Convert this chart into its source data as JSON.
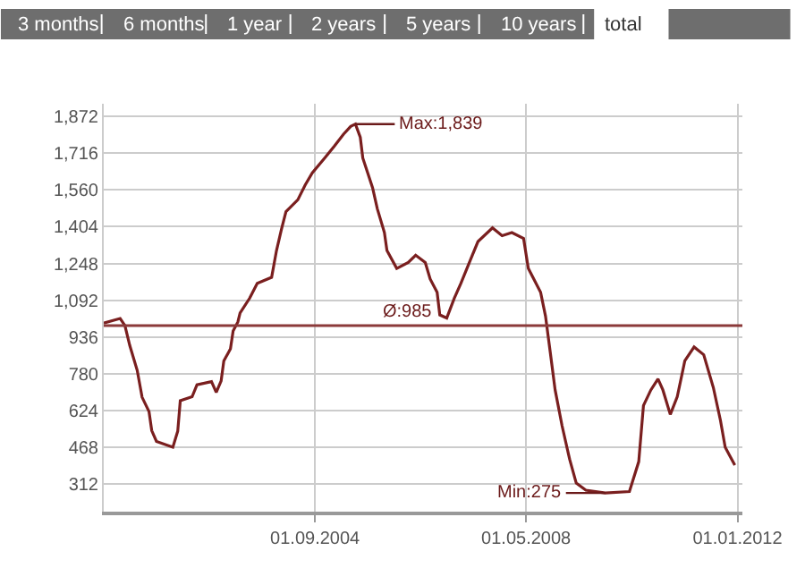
{
  "chart_data": {
    "type": "line",
    "annotations": [
      "3 months",
      "6 months",
      "1 year",
      "2 years",
      "5 years",
      "10 years",
      "total",
      {
        "text": "Max:1,839",
        "x": "2005-05-15",
        "y": 1839
      },
      {
        "text": "Min:275",
        "x": "2009-09-15",
        "y": 275
      }
    ],
    "x": [
      "2001-01-01",
      "2001-04-15",
      "2001-05-15",
      "2001-06-15",
      "2001-08-01",
      "2001-09-01",
      "2001-10-15",
      "2001-11-01",
      "2001-12-01",
      "2002-03-15",
      "2002-04-15",
      "2002-05-01",
      "2002-07-15",
      "2002-08-15",
      "2002-11-15",
      "2002-12-15",
      "2003-01-15",
      "2003-02-01",
      "2003-03-15",
      "2003-04-01",
      "2003-05-01",
      "2003-05-15",
      "2003-07-15",
      "2003-09-01",
      "2003-12-01",
      "2004-01-01",
      "2004-02-01",
      "2004-03-01",
      "2004-05-15",
      "2004-07-01",
      "2004-08-15",
      "2004-11-01",
      "2005-01-01",
      "2005-03-01",
      "2005-04-15",
      "2005-05-15",
      "2005-06-15",
      "2005-07-01",
      "2005-08-01",
      "2005-09-01",
      "2005-10-01",
      "2005-11-15",
      "2005-12-01",
      "2006-02-01",
      "2006-04-15",
      "2006-06-01",
      "2006-08-01",
      "2006-09-01",
      "2006-10-15",
      "2006-11-01",
      "2006-12-15",
      "2007-02-01",
      "2007-03-15",
      "2007-05-15",
      "2007-07-01",
      "2007-10-01",
      "2007-12-01",
      "2008-02-01",
      "2008-04-15",
      "2008-05-15",
      "2008-08-01",
      "2008-09-01",
      "2008-10-01",
      "2008-11-01",
      "2008-12-15",
      "2009-02-01",
      "2009-03-15",
      "2009-05-15",
      "2009-09-15",
      "2010-02-15",
      "2010-04-15",
      "2010-05-15",
      "2010-07-01",
      "2010-08-15",
      "2010-09-15",
      "2010-11-01",
      "2010-12-15",
      "2011-02-01",
      "2011-04-01",
      "2011-06-01",
      "2011-08-01",
      "2011-09-15",
      "2011-10-15",
      "2011-12-15"
    ],
    "series": [
      {
        "color": "#7a1f1f",
        "values": [
          995,
          1015,
          985,
          900,
          795,
          681,
          620,
          540,
          494,
          469,
          537,
          666,
          683,
          734,
          747,
          702,
          750,
          835,
          886,
          962,
          1000,
          1038,
          1101,
          1164,
          1189,
          1303,
          1392,
          1468,
          1518,
          1581,
          1632,
          1695,
          1745,
          1796,
          1829,
          1839,
          1783,
          1695,
          1632,
          1569,
          1480,
          1379,
          1303,
          1227,
          1252,
          1283,
          1252,
          1182,
          1126,
          1030,
          1017,
          1101,
          1164,
          1265,
          1341,
          1399,
          1366,
          1379,
          1354,
          1227,
          1126,
          1025,
          873,
          712,
          560,
          418,
          317,
          287,
          275,
          281,
          408,
          646,
          712,
          759,
          712,
          608,
          683,
          835,
          894,
          861,
          722,
          583,
          469,
          393
        ]
      }
    ],
    "xlim": [
      "2001-01-01",
      "2012-02-01"
    ],
    "xticks": [
      {
        "value": "2004-09-01",
        "label": "01.09.2004"
      },
      {
        "value": "2008-05-01",
        "label": "01.05.2008"
      },
      {
        "value": "2012-01-01",
        "label": "01.01.2012"
      }
    ],
    "ylim": [
      196,
      1925
    ],
    "yticks": [
      {
        "value": 312,
        "label": "312"
      },
      {
        "value": 468,
        "label": "468"
      },
      {
        "value": 624,
        "label": "624"
      },
      {
        "value": 780,
        "label": "780"
      },
      {
        "value": 936,
        "label": "936"
      },
      {
        "value": 1092,
        "label": "1,092"
      },
      {
        "value": 1248,
        "label": "1,248"
      },
      {
        "value": 1404,
        "label": "1,404"
      },
      {
        "value": 1560,
        "label": "1,560"
      },
      {
        "value": 1716,
        "label": "1,716"
      },
      {
        "value": 1872,
        "label": "1,872"
      }
    ],
    "ref_lines": [
      {
        "axis": "y",
        "value": 985,
        "label": "Ø:985",
        "color": "#8b3a3a"
      }
    ],
    "grid": true,
    "marker": "none",
    "line_style": "solid"
  }
}
